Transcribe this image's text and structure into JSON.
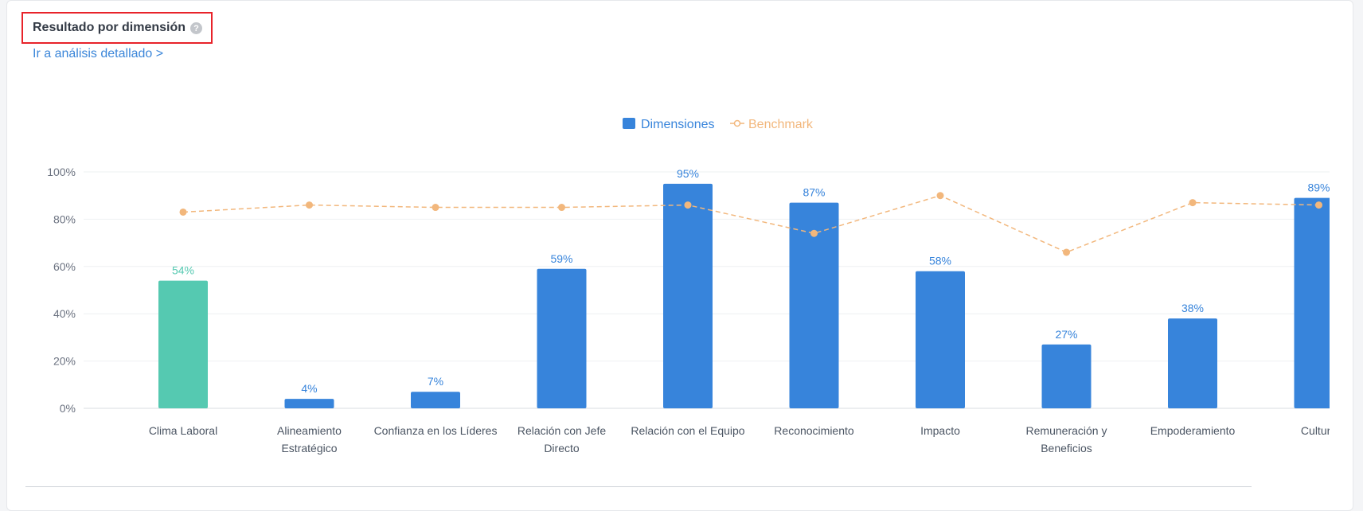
{
  "header": {
    "title": "Resultado por dimensión",
    "help_icon": "question-circle-icon",
    "link_label": "Ir a análisis detallado >"
  },
  "chart_data": {
    "type": "bar",
    "categories": [
      "Clima Laboral",
      "Alineamiento Estratégico",
      "Confianza en los Líderes",
      "Relación con Jefe Directo",
      "Relación con el Equipo",
      "Reconocimiento",
      "Impacto",
      "Remuneración y Beneficios",
      "Empoderamiento",
      "Cultura"
    ],
    "category_lines": [
      [
        "Clima Laboral"
      ],
      [
        "Alineamiento",
        "Estratégico"
      ],
      [
        "Confianza en los Líderes"
      ],
      [
        "Relación con Jefe",
        "Directo"
      ],
      [
        "Relación con el Equipo"
      ],
      [
        "Reconocimiento"
      ],
      [
        "Impacto"
      ],
      [
        "Remuneración y",
        "Beneficios"
      ],
      [
        "Empoderamiento"
      ],
      [
        "Cultura"
      ]
    ],
    "series": [
      {
        "name": "Dimensiones",
        "type": "bar",
        "values": [
          54,
          4,
          7,
          59,
          95,
          87,
          58,
          27,
          38,
          89
        ],
        "labels": [
          "54%",
          "4%",
          "7%",
          "59%",
          "95%",
          "87%",
          "58%",
          "27%",
          "38%",
          "89%"
        ],
        "color": "#3784db",
        "highlight_color": "#55c9b1",
        "highlight_index": 0
      },
      {
        "name": "Benchmark",
        "type": "line",
        "style": "dashed",
        "values": [
          83,
          86,
          85,
          85,
          86,
          74,
          90,
          66,
          87,
          86
        ],
        "color": "#f2b77c"
      }
    ],
    "ylim": [
      0,
      100
    ],
    "yticks": [
      0,
      20,
      40,
      60,
      80,
      100
    ],
    "ytick_labels": [
      "0%",
      "20%",
      "40%",
      "60%",
      "80%",
      "100%"
    ],
    "legend_position": "top-center",
    "grid": true
  }
}
